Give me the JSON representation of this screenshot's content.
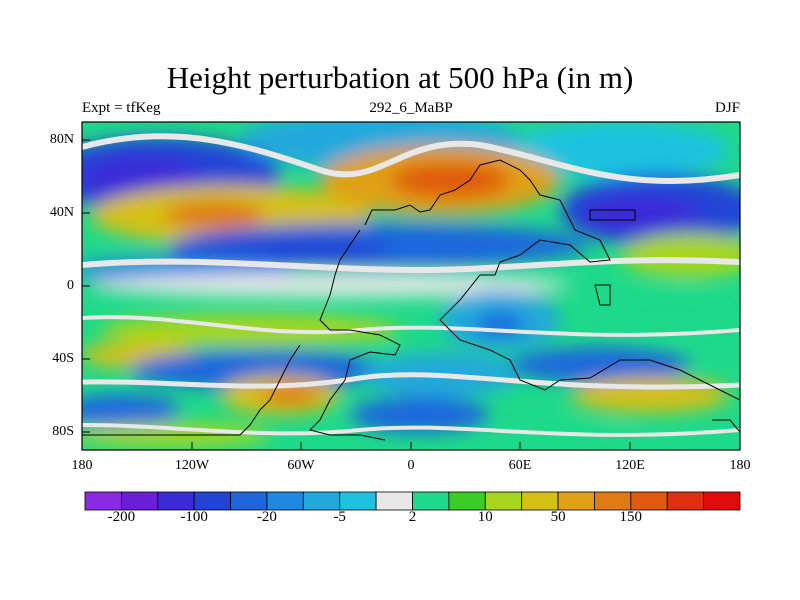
{
  "title": "Height perturbation at 500 hPa (in m)",
  "subtitle_left": "Expt = tfKeg",
  "subtitle_center": "292_6_MaBP",
  "subtitle_right": "DJF",
  "lat_ticks": [
    "80N",
    "40N",
    "0",
    "40S",
    "80S"
  ],
  "lon_ticks": [
    "180",
    "120W",
    "60W",
    "0",
    "60E",
    "120E",
    "180"
  ],
  "colorbar": {
    "colors": [
      "#8a2be2",
      "#6a1fd6",
      "#3a2ad8",
      "#2244d6",
      "#1f66dd",
      "#1f88e0",
      "#22a8dc",
      "#1ec2e0",
      "#e8e8e8",
      "#1fd98a",
      "#3ccc27",
      "#a8d61e",
      "#d6c015",
      "#e0a018",
      "#e07a14",
      "#e05a10",
      "#e02e10",
      "#e00c0c"
    ],
    "labels": [
      {
        "text": "-200",
        "after_box": 1
      },
      {
        "text": "-100",
        "after_box": 3
      },
      {
        "text": "-20",
        "after_box": 5
      },
      {
        "text": "-5",
        "after_box": 7
      },
      {
        "text": "2",
        "after_box": 9
      },
      {
        "text": "10",
        "after_box": 11
      },
      {
        "text": "50",
        "after_box": 13
      },
      {
        "text": "150",
        "after_box": 15
      }
    ]
  }
}
